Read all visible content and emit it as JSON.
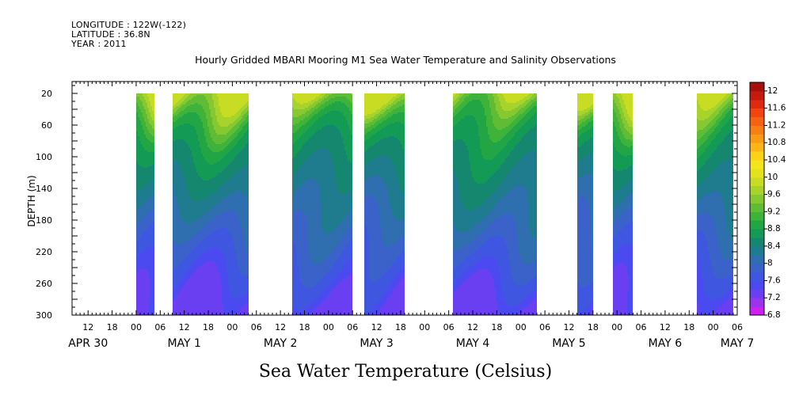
{
  "header": {
    "longitude": "LONGITUDE : 122W(-122)",
    "latitude": "LATITUDE : 36.8N",
    "year": "YEAR : 2011"
  },
  "chart_data": {
    "type": "heatmap",
    "title": "Hourly Gridded MBARI Mooring M1 Sea Water Temperature and Salinity Observations",
    "xlabel": "Sea Water Temperature (Celsius)",
    "ylabel": "DEPTH (m)",
    "x_hour_range": [
      8,
      174
    ],
    "x_hour_origin_label": "APR 30 00",
    "ylim": [
      300,
      5
    ],
    "y_ticks": [
      20,
      60,
      100,
      140,
      180,
      220,
      260,
      300
    ],
    "x_tick_labels": [
      "12",
      "18",
      "00",
      "06",
      "12",
      "18",
      "00",
      "06",
      "12",
      "18",
      "00",
      "06",
      "12",
      "18",
      "00",
      "06",
      "12",
      "18",
      "00",
      "06",
      "12",
      "18",
      "00",
      "06",
      "12",
      "18",
      "00",
      "06"
    ],
    "x_tick_hours": [
      12,
      18,
      24,
      30,
      36,
      42,
      48,
      54,
      60,
      66,
      72,
      78,
      84,
      90,
      96,
      102,
      108,
      114,
      120,
      126,
      132,
      138,
      144,
      150,
      156,
      162,
      168,
      174
    ],
    "day_labels": [
      {
        "label": "APR 30",
        "hour": 12
      },
      {
        "label": "MAY  1",
        "hour": 36
      },
      {
        "label": "MAY  2",
        "hour": 60
      },
      {
        "label": "MAY  3",
        "hour": 84
      },
      {
        "label": "MAY  4",
        "hour": 108
      },
      {
        "label": "MAY  5",
        "hour": 132
      },
      {
        "label": "MAY  6",
        "hour": 156
      },
      {
        "label": "MAY  7",
        "hour": 174
      }
    ],
    "data_intervals": [
      {
        "start": 24,
        "end": 28.5
      },
      {
        "start": 33,
        "end": 52
      },
      {
        "start": 63,
        "end": 78
      },
      {
        "start": 81,
        "end": 91
      },
      {
        "start": 103,
        "end": 124
      },
      {
        "start": 134,
        "end": 138
      },
      {
        "start": 143,
        "end": 148
      },
      {
        "start": 164,
        "end": 173
      }
    ],
    "temperature_profile": {
      "depths": [
        20,
        40,
        60,
        80,
        100,
        120,
        140,
        160,
        180,
        200,
        220,
        240,
        260,
        280,
        300
      ],
      "values": [
        9.8,
        9.3,
        8.9,
        8.7,
        8.55,
        8.45,
        8.3,
        8.2,
        8.05,
        7.95,
        7.8,
        7.7,
        7.55,
        7.35,
        7.2
      ]
    },
    "colorbar": {
      "levels": [
        6.8,
        7.0,
        7.2,
        7.4,
        7.6,
        7.8,
        8.0,
        8.2,
        8.4,
        8.6,
        8.8,
        9.0,
        9.2,
        9.4,
        9.6,
        9.8,
        10.0,
        10.2,
        10.4,
        10.6,
        10.8,
        11.0,
        11.2,
        11.4,
        11.6,
        11.8,
        12.0,
        12.2
      ],
      "labels": [
        "6.8",
        "7.2",
        "7.6",
        "8",
        "8.4",
        "8.8",
        "9.2",
        "9.6",
        "10",
        "10.4",
        "10.8",
        "11.2",
        "11.6",
        "12"
      ],
      "colors": [
        "#cc22ee",
        "#9a33f0",
        "#6a3ff2",
        "#4a4af0",
        "#3f56e0",
        "#3a62c8",
        "#2f6fb0",
        "#1e7c8e",
        "#15876e",
        "#139a55",
        "#22a545",
        "#3fb23a",
        "#61bc35",
        "#86c82f",
        "#a8d32a",
        "#c8dc24",
        "#e3e21d",
        "#f3e51a",
        "#fbd218",
        "#fcb617",
        "#fb9a15",
        "#f97e13",
        "#f66112",
        "#f24411",
        "#e02a10",
        "#c51a0e",
        "#a60f0c"
      ]
    }
  }
}
